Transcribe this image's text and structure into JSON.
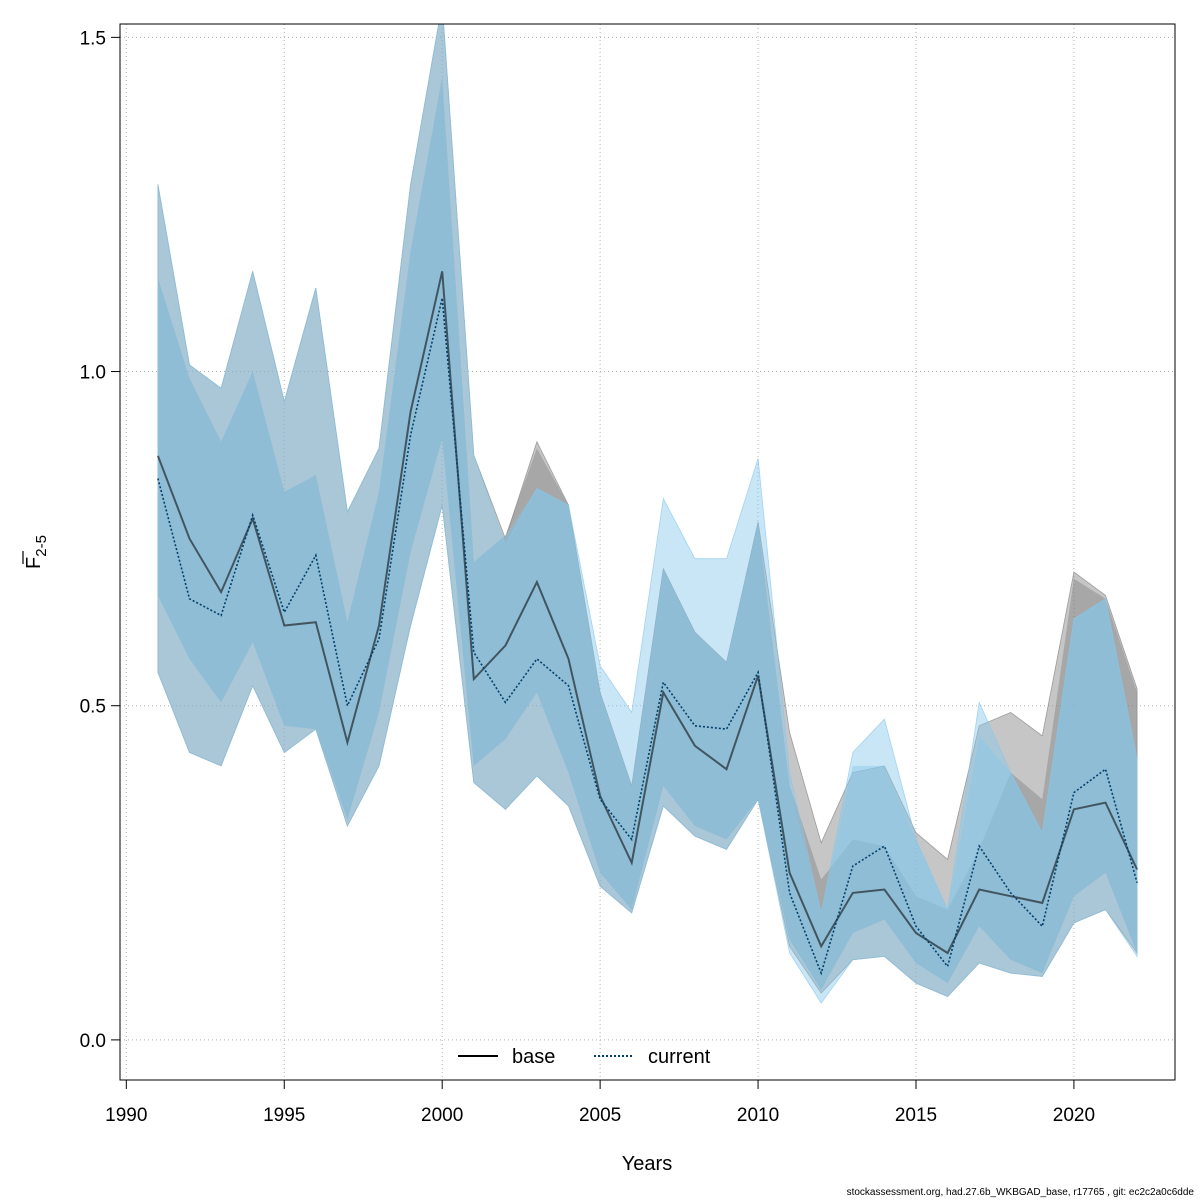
{
  "chart_data": {
    "type": "line",
    "xlabel": "Years",
    "ylabel": {
      "main": "F",
      "subscript": "2-5"
    },
    "xlim": [
      1989.8,
      2023.2
    ],
    "ylim": [
      -0.06,
      1.52
    ],
    "xticks": [
      1990,
      1995,
      2000,
      2005,
      2010,
      2015,
      2020
    ],
    "yticks": [
      0.0,
      0.5,
      1.0,
      1.5
    ],
    "ytick_labels": [
      "0.0",
      "0.5",
      "1.0",
      "1.5"
    ],
    "grid": true,
    "legend_position": "bottom-center",
    "years": [
      1991,
      1992,
      1993,
      1994,
      1995,
      1996,
      1997,
      1998,
      1999,
      2000,
      2001,
      2002,
      2003,
      2004,
      2005,
      2006,
      2007,
      2008,
      2009,
      2010,
      2011,
      2012,
      2013,
      2014,
      2015,
      2016,
      2017,
      2018,
      2019,
      2020,
      2021,
      2022
    ],
    "series": [
      {
        "name": "base",
        "line_color": "#000000",
        "line_style": "solid",
        "band_color": "#808080",
        "estimate": [
          0.874,
          0.75,
          0.67,
          0.78,
          0.62,
          0.625,
          0.445,
          0.62,
          0.94,
          1.15,
          0.54,
          0.59,
          0.685,
          0.57,
          0.365,
          0.265,
          0.52,
          0.44,
          0.405,
          0.545,
          0.25,
          0.14,
          0.22,
          0.225,
          0.16,
          0.13,
          0.225,
          0.215,
          0.205,
          0.345,
          0.355,
          0.255
        ],
        "inner_lower": [
          0.665,
          0.57,
          0.505,
          0.595,
          0.47,
          0.465,
          0.33,
          0.49,
          0.73,
          0.9,
          0.41,
          0.45,
          0.52,
          0.4,
          0.25,
          0.195,
          0.38,
          0.32,
          0.3,
          0.36,
          0.15,
          0.075,
          0.16,
          0.18,
          0.115,
          0.085,
          0.17,
          0.12,
          0.1,
          0.215,
          0.25,
          0.13
        ],
        "inner_upper": [
          1.14,
          0.99,
          0.895,
          1.0,
          0.82,
          0.845,
          0.625,
          0.82,
          1.18,
          1.44,
          0.715,
          0.755,
          0.885,
          0.8,
          0.52,
          0.38,
          0.705,
          0.61,
          0.565,
          0.775,
          0.38,
          0.24,
          0.3,
          0.29,
          0.215,
          0.195,
          0.285,
          0.4,
          0.36,
          0.69,
          0.66,
          0.52
        ],
        "outer_lower": [
          0.55,
          0.43,
          0.41,
          0.53,
          0.43,
          0.465,
          0.32,
          0.41,
          0.62,
          0.8,
          0.385,
          0.345,
          0.395,
          0.35,
          0.23,
          0.19,
          0.35,
          0.305,
          0.285,
          0.36,
          0.14,
          0.07,
          0.12,
          0.125,
          0.085,
          0.065,
          0.115,
          0.1,
          0.095,
          0.175,
          0.195,
          0.13
        ],
        "outer_upper": [
          1.28,
          1.01,
          0.975,
          1.15,
          0.955,
          1.125,
          0.79,
          0.885,
          1.28,
          1.55,
          0.875,
          0.75,
          0.895,
          0.8,
          0.52,
          0.38,
          0.705,
          0.61,
          0.565,
          0.775,
          0.46,
          0.295,
          0.4,
          0.41,
          0.31,
          0.27,
          0.47,
          0.49,
          0.455,
          0.7,
          0.665,
          0.525
        ]
      },
      {
        "name": "current",
        "line_color": "#00406b",
        "line_style": "dotted",
        "band_color": "#87c8ec",
        "estimate": [
          0.84,
          0.66,
          0.635,
          0.785,
          0.64,
          0.725,
          0.5,
          0.6,
          0.905,
          1.11,
          0.58,
          0.505,
          0.57,
          0.53,
          0.36,
          0.3,
          0.535,
          0.47,
          0.465,
          0.55,
          0.22,
          0.1,
          0.26,
          0.29,
          0.17,
          0.11,
          0.29,
          0.22,
          0.17,
          0.37,
          0.405,
          0.235
        ],
        "inner_lower": [
          0.665,
          0.57,
          0.505,
          0.595,
          0.47,
          0.465,
          0.33,
          0.49,
          0.73,
          0.9,
          0.41,
          0.45,
          0.52,
          0.4,
          0.25,
          0.195,
          0.38,
          0.32,
          0.3,
          0.36,
          0.15,
          0.075,
          0.16,
          0.18,
          0.115,
          0.085,
          0.17,
          0.12,
          0.1,
          0.215,
          0.25,
          0.13
        ],
        "inner_upper": [
          1.14,
          0.99,
          0.895,
          1.0,
          0.82,
          0.845,
          0.625,
          0.82,
          1.18,
          1.44,
          0.715,
          0.755,
          0.825,
          0.8,
          0.52,
          0.38,
          0.705,
          0.61,
          0.565,
          0.775,
          0.38,
          0.19,
          0.41,
          0.41,
          0.3,
          0.195,
          0.455,
          0.4,
          0.31,
          0.63,
          0.66,
          0.42
        ],
        "outer_lower": [
          0.55,
          0.43,
          0.41,
          0.53,
          0.43,
          0.465,
          0.32,
          0.41,
          0.62,
          0.8,
          0.385,
          0.345,
          0.395,
          0.35,
          0.23,
          0.19,
          0.35,
          0.305,
          0.285,
          0.36,
          0.13,
          0.055,
          0.12,
          0.125,
          0.085,
          0.065,
          0.115,
          0.1,
          0.095,
          0.175,
          0.195,
          0.125
        ],
        "outer_upper": [
          1.28,
          1.01,
          0.975,
          1.15,
          0.955,
          1.125,
          0.79,
          0.885,
          1.28,
          1.55,
          0.875,
          0.74,
          0.825,
          0.8,
          0.56,
          0.49,
          0.81,
          0.72,
          0.72,
          0.87,
          0.4,
          0.19,
          0.43,
          0.48,
          0.3,
          0.195,
          0.505,
          0.4,
          0.31,
          0.63,
          0.66,
          0.42
        ]
      }
    ],
    "footer": "stockassessment.org, had.27.6b_WKBGAD_base, r17765 , git: ec2c2a0c6dde"
  }
}
